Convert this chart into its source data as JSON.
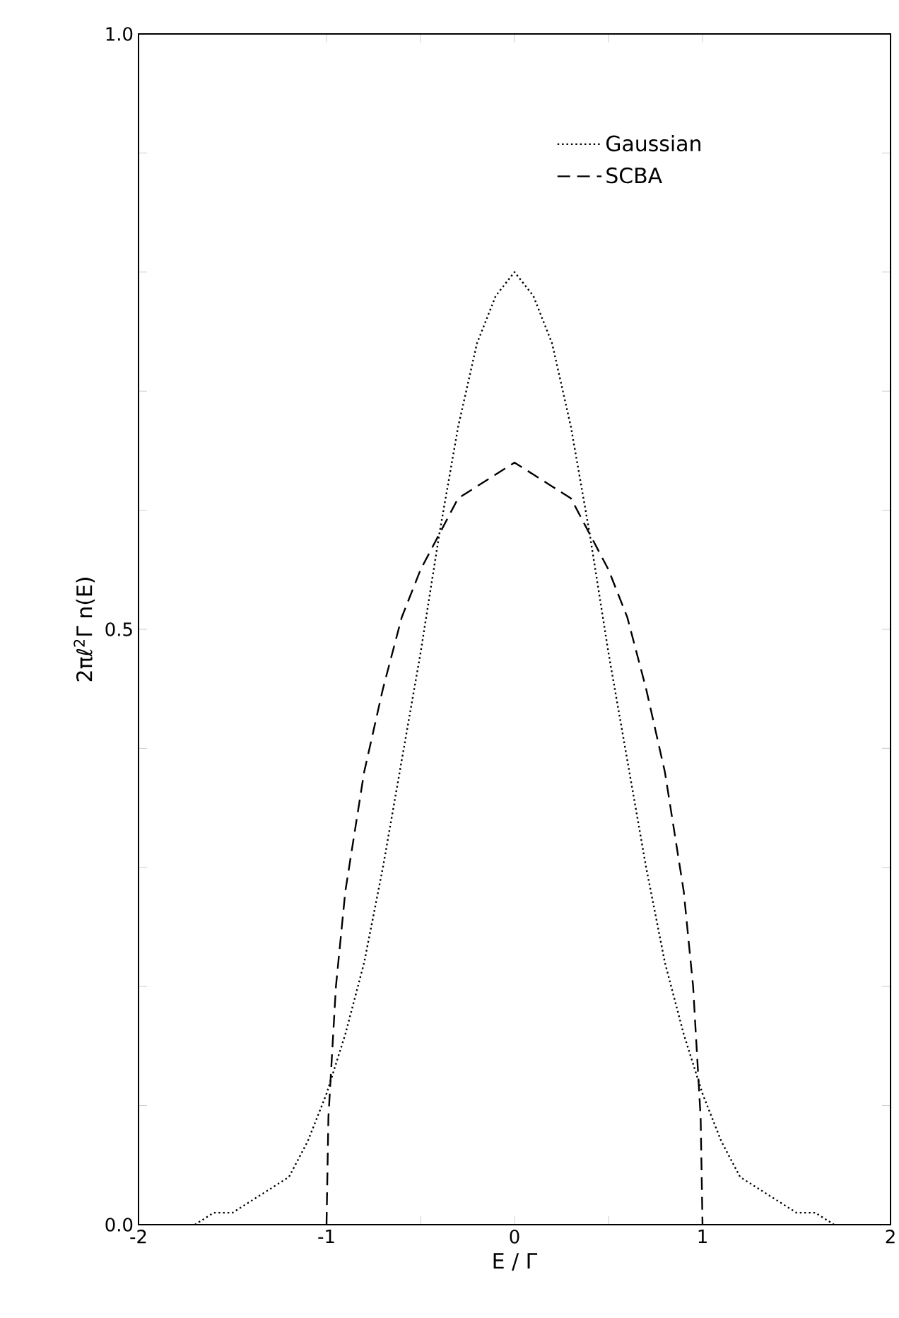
{
  "chart_data": {
    "type": "line",
    "xlabel": "E / Γ",
    "ylabel": "2πℓ$^{2}$Γ n(E)",
    "xlim": [
      -2,
      2
    ],
    "ylim": [
      0,
      1
    ],
    "xticks": [
      -2,
      -1,
      {
        "value": -0.5,
        "label": null
      },
      0,
      {
        "value": 0.5,
        "label": null
      },
      1,
      2
    ],
    "yticks": [
      {
        "value": 0,
        "label": "0.0"
      },
      {
        "value": 0.1,
        "label": null
      },
      {
        "value": 0.2,
        "label": null
      },
      {
        "value": 0.3,
        "label": null
      },
      {
        "value": 0.4,
        "label": null
      },
      {
        "value": 0.5,
        "label": "0.5"
      },
      {
        "value": 0.6,
        "label": null
      },
      {
        "value": 0.7,
        "label": null
      },
      {
        "value": 0.8,
        "label": null
      },
      {
        "value": 0.9,
        "label": null
      },
      {
        "value": 1,
        "label": "1.0"
      }
    ],
    "legend": "top right",
    "grid": false,
    "marker": "none",
    "series": [
      {
        "name": "Gaussian",
        "color": "#000000",
        "line_style": "dotted",
        "x": [
          -1.7,
          -1.6,
          -1.5,
          -1.4,
          -1.3,
          -1.2,
          -1.1,
          -1.0,
          -0.9,
          -0.8,
          -0.7,
          -0.6,
          -0.5,
          -0.4,
          -0.3,
          -0.2,
          -0.1,
          0,
          0.1,
          0.2,
          0.3,
          0.4,
          0.5,
          0.6,
          0.7,
          0.8,
          0.9,
          1.0,
          1.1,
          1.2,
          1.3,
          1.4,
          1.5,
          1.6,
          1.7
        ],
        "values": [
          0.0,
          0.01,
          0.01,
          0.02,
          0.03,
          0.04,
          0.07,
          0.11,
          0.16,
          0.22,
          0.3,
          0.39,
          0.48,
          0.58,
          0.67,
          0.74,
          0.78,
          0.8,
          0.78,
          0.74,
          0.67,
          0.58,
          0.48,
          0.39,
          0.3,
          0.22,
          0.16,
          0.11,
          0.07,
          0.04,
          0.03,
          0.02,
          0.01,
          0.01,
          0.0
        ]
      },
      {
        "name": "SCBA",
        "color": "#000000",
        "line_style": "dashed",
        "x": [
          -1,
          -0.99,
          -0.95,
          -0.9,
          -0.8,
          -0.7,
          -0.6,
          -0.5,
          -0.4,
          -0.3,
          -0.2,
          -0.1,
          0,
          0.1,
          0.2,
          0.3,
          0.4,
          0.5,
          0.6,
          0.7,
          0.8,
          0.9,
          0.95,
          0.99,
          1
        ],
        "values": [
          0.0,
          0.09,
          0.2,
          0.28,
          0.38,
          0.45,
          0.51,
          0.55,
          0.58,
          0.61,
          0.62,
          0.63,
          0.64,
          0.63,
          0.62,
          0.61,
          0.58,
          0.55,
          0.51,
          0.45,
          0.38,
          0.28,
          0.2,
          0.09,
          0.0
        ]
      }
    ]
  }
}
